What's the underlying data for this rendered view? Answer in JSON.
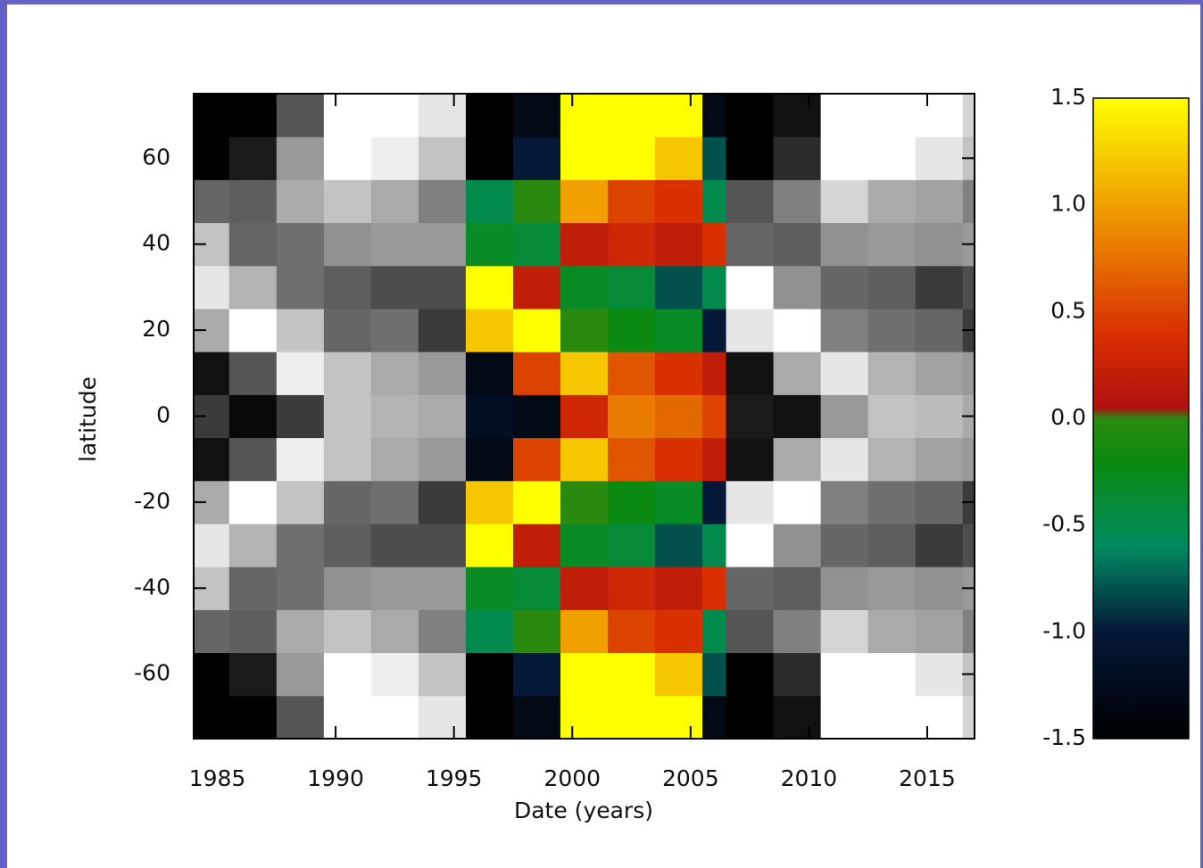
{
  "chart_data": {
    "type": "heatmap",
    "xlabel": "Date (years)",
    "ylabel": "latitude",
    "xlim": [
      1984,
      2017
    ],
    "ylim": [
      -75,
      75
    ],
    "xticks": [
      1985,
      1990,
      1995,
      2000,
      2005,
      2010,
      2015
    ],
    "yticks": [
      -60,
      -40,
      -20,
      0,
      20,
      40,
      60
    ],
    "x_edges": [
      1984,
      1985.5,
      1987.5,
      1989.5,
      1991.5,
      1993.5,
      1995.5,
      1997.5,
      1999.5,
      2001.5,
      2003.5,
      2005.5,
      2006.5,
      2008.5,
      2010.5,
      2012.5,
      2014.5,
      2016.5,
      2017
    ],
    "y_edges": [
      -75,
      -65,
      -55,
      -45,
      -35,
      -25,
      -15,
      -5,
      5,
      15,
      25,
      35,
      45,
      55,
      65,
      75
    ],
    "z": [
      [
        -1.5,
        -1.5,
        -0.5,
        1.5,
        1.5,
        1.2,
        -1.5,
        -1.3,
        1.5,
        1.5,
        1.5,
        -1.3,
        -1.5,
        -1.3,
        1.5,
        1.5,
        1.5,
        1.0
      ],
      [
        -1.5,
        -1.2,
        0.3,
        1.5,
        1.3,
        0.8,
        -1.5,
        -1.0,
        1.5,
        1.5,
        1.2,
        -0.8,
        -1.5,
        -1.0,
        1.5,
        1.5,
        1.2,
        0.8
      ],
      [
        -0.3,
        -0.4,
        0.5,
        0.8,
        0.5,
        0,
        -0.5,
        0,
        1.0,
        0.5,
        0.4,
        -0.5,
        -0.5,
        0,
        1.0,
        0.5,
        0.4,
        0
      ],
      [
        0.8,
        -0.3,
        -0.2,
        0.2,
        0.3,
        0.3,
        -0.3,
        -0.4,
        0.2,
        0.3,
        0.2,
        0.4,
        -0.3,
        -0.4,
        0.2,
        0.3,
        0.2,
        0.3
      ],
      [
        1.2,
        0.6,
        -0.2,
        -0.4,
        -0.6,
        -0.6,
        1.5,
        0.2,
        -0.3,
        -0.4,
        -0.8,
        -0.5,
        1.5,
        0.2,
        -0.3,
        -0.4,
        -0.8,
        -0.6
      ],
      [
        0.5,
        1.5,
        0.8,
        -0.3,
        -0.2,
        -0.8,
        1.2,
        1.5,
        0,
        -0.2,
        -0.3,
        -1.0,
        1.2,
        1.5,
        0,
        -0.2,
        -0.3,
        -0.8
      ],
      [
        -1.3,
        -0.5,
        1.3,
        0.8,
        0.5,
        0.3,
        -1.3,
        0.5,
        1.2,
        0.6,
        0.4,
        0.2,
        -1.3,
        0.5,
        1.2,
        0.6,
        0.4,
        0.3
      ],
      [
        -0.8,
        -1.4,
        -0.8,
        0.8,
        0.6,
        0.5,
        -1.2,
        -1.3,
        0.3,
        0.8,
        0.7,
        0.5,
        -1.2,
        -1.3,
        0.3,
        0.8,
        0.7,
        0.5
      ],
      [
        -1.3,
        -0.5,
        1.3,
        0.8,
        0.5,
        0.3,
        -1.3,
        0.5,
        1.2,
        0.6,
        0.4,
        0.2,
        -1.3,
        0.5,
        1.2,
        0.6,
        0.4,
        0.3
      ],
      [
        0.5,
        1.5,
        0.8,
        -0.3,
        -0.2,
        -0.8,
        1.2,
        1.5,
        0,
        -0.2,
        -0.3,
        -1.0,
        1.2,
        1.5,
        0,
        -0.2,
        -0.3,
        -0.8
      ],
      [
        1.2,
        0.6,
        -0.2,
        -0.4,
        -0.6,
        -0.6,
        1.5,
        0.2,
        -0.3,
        -0.4,
        -0.8,
        -0.5,
        1.5,
        0.2,
        -0.3,
        -0.4,
        -0.8,
        -0.6
      ],
      [
        0.8,
        -0.3,
        -0.2,
        0.2,
        0.3,
        0.3,
        -0.3,
        -0.4,
        0.2,
        0.3,
        0.2,
        0.4,
        -0.3,
        -0.4,
        0.2,
        0.3,
        0.2,
        0.3
      ],
      [
        -0.3,
        -0.4,
        0.5,
        0.8,
        0.5,
        0,
        -0.5,
        0,
        1.0,
        0.5,
        0.4,
        -0.5,
        -0.5,
        0,
        1.0,
        0.5,
        0.4,
        0
      ],
      [
        -1.5,
        -1.2,
        0.3,
        1.5,
        1.3,
        0.8,
        -1.5,
        -1.0,
        1.5,
        1.5,
        1.2,
        -0.8,
        -1.5,
        -1.0,
        1.5,
        1.5,
        1.2,
        0.8
      ],
      [
        -1.5,
        -1.5,
        -0.5,
        1.5,
        1.5,
        1.2,
        -1.5,
        -1.3,
        1.5,
        1.5,
        1.5,
        -1.3,
        -1.5,
        -1.3,
        1.5,
        1.5,
        1.5,
        1.0
      ]
    ],
    "clim": [
      -1.5,
      1.5
    ],
    "cticks": [
      1.5,
      {
        "value": 1,
        "label": "1.0"
      },
      0.5,
      {
        "value": 0,
        "label": "0.0"
      },
      -0.5,
      {
        "value": -1,
        "label": "-1.0"
      },
      -1.5
    ],
    "color_range": [
      1995.5,
      2006.5
    ],
    "colormap": [
      {
        "value": -1.5,
        "color": "#000000"
      },
      {
        "value": -1.0,
        "color": "#041838"
      },
      {
        "value": -0.6,
        "color": "#008a60"
      },
      {
        "value": -0.2,
        "color": "#0a8a10"
      },
      {
        "value": 0,
        "color": "#2a8a10"
      },
      {
        "value": 0.05,
        "color": "#b01010"
      },
      {
        "value": 0.4,
        "color": "#d83000"
      },
      {
        "value": 1.0,
        "color": "#f0a000"
      },
      {
        "value": 1.5,
        "color": "#ffff00"
      }
    ],
    "graymap": [
      {
        "value": -1.5,
        "color": "#000000"
      },
      {
        "value": 1.5,
        "color": "#ffffff"
      }
    ]
  }
}
